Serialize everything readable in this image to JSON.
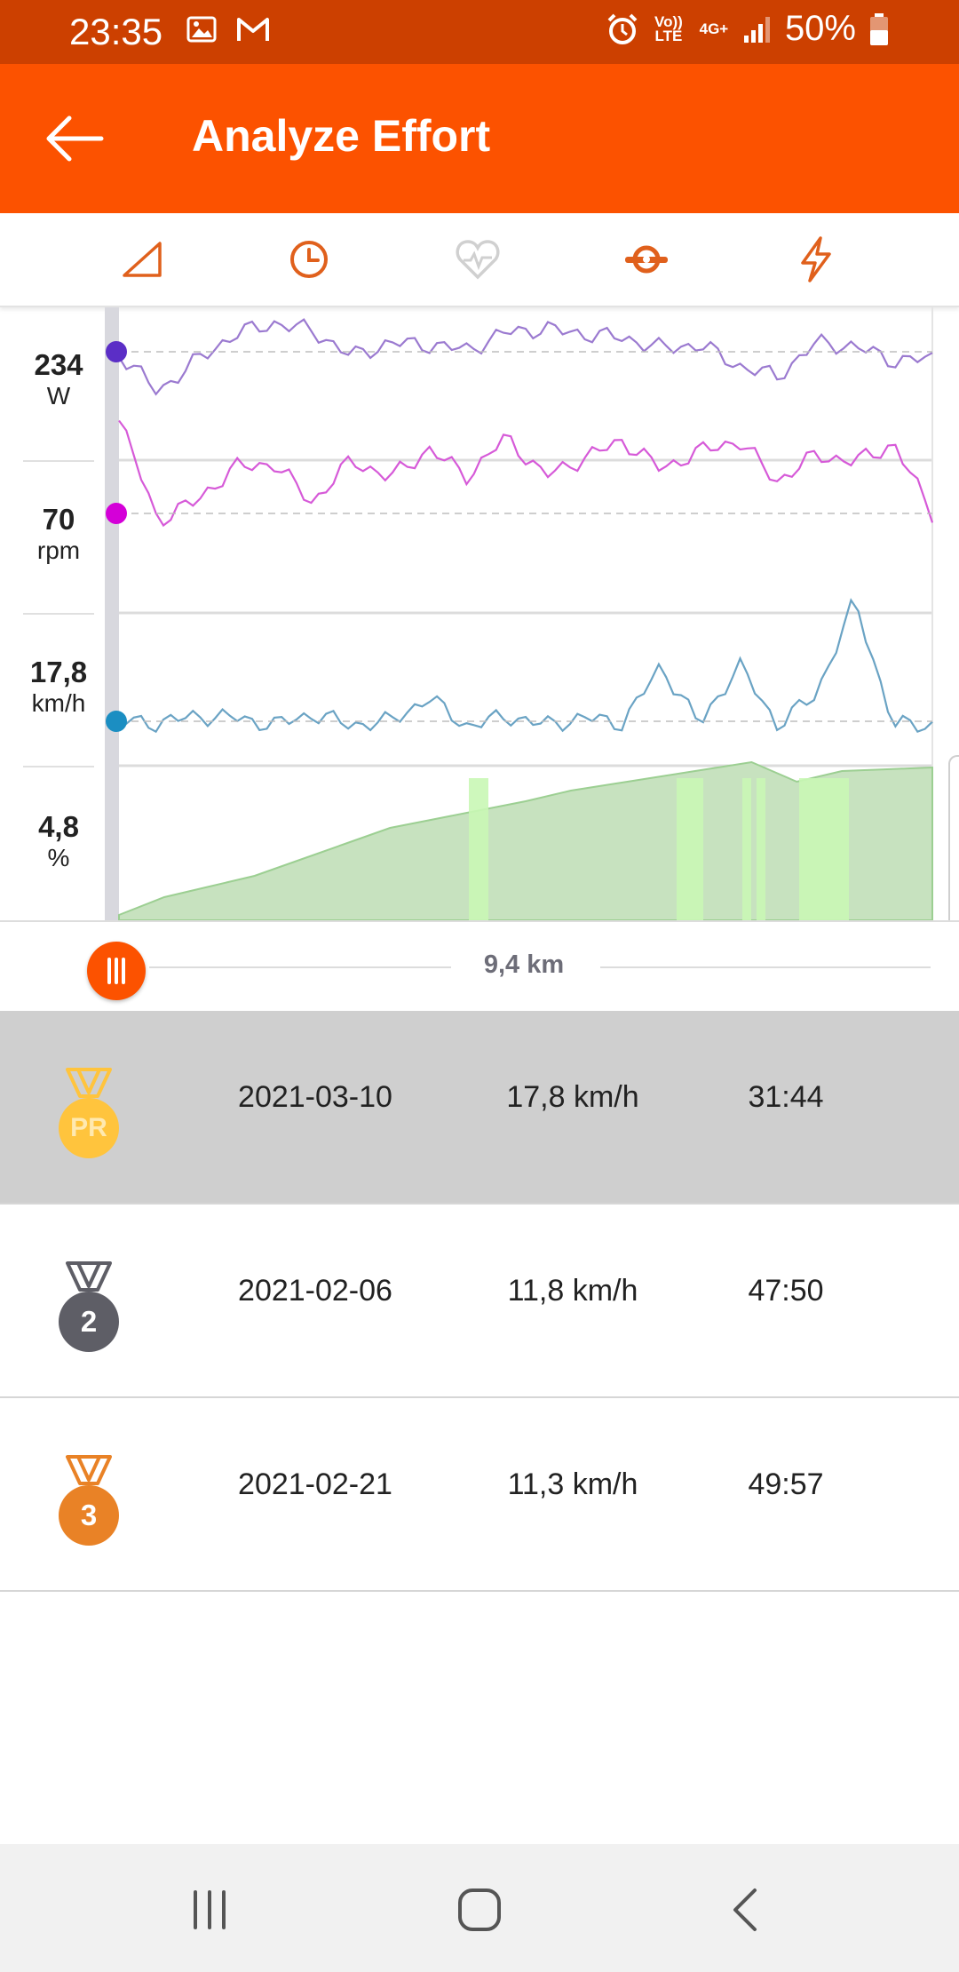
{
  "status_bar": {
    "time": "23:35",
    "volte_label": "Vo)) LTE",
    "network_label": "4G+",
    "battery": "50%",
    "background_color": "#cc4000"
  },
  "app_bar": {
    "title": "Analyze Effort",
    "background_color": "#fc5200"
  },
  "tabs": [
    {
      "icon": "grade-triangle-icon",
      "active": true
    },
    {
      "icon": "clock-icon",
      "active": true
    },
    {
      "icon": "heart-rate-icon",
      "active": false
    },
    {
      "icon": "cadence-icon",
      "active": true
    },
    {
      "icon": "lightning-power-icon",
      "active": true
    }
  ],
  "metrics": [
    {
      "value": "234",
      "unit": "W",
      "color": "#9b7ad0",
      "dot_color": "#5b2ec6"
    },
    {
      "value": "70",
      "unit": "rpm",
      "color": "#d65ad8",
      "dot_color": "#d400d8"
    },
    {
      "value": "17,8",
      "unit": "km/h",
      "color": "#6aa3c4",
      "dot_color": "#1b8ec2"
    },
    {
      "value": "4,8",
      "unit": "%",
      "color": "#9ccf92",
      "dot_color": ""
    }
  ],
  "scrubber": {
    "label": "9,4 km"
  },
  "efforts": [
    {
      "medal": "PR",
      "date": "2021-03-10",
      "speed": "17,8 km/h",
      "time": "31:44",
      "selected": true,
      "medal_color": "#ffc43d"
    },
    {
      "medal": "2",
      "date": "2021-02-06",
      "speed": "11,8 km/h",
      "time": "47:50",
      "selected": false,
      "medal_color": "#5e5e66"
    },
    {
      "medal": "3",
      "date": "2021-02-21",
      "speed": "11,3 km/h",
      "time": "49:57",
      "selected": false,
      "medal_color": "#e98226"
    }
  ],
  "nav_bar": {
    "icons": [
      "recent-apps-icon",
      "home-icon",
      "back-nav-icon"
    ]
  }
}
